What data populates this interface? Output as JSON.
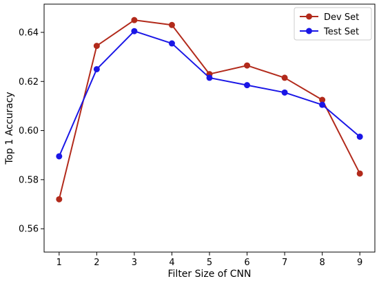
{
  "chart_data": {
    "type": "line",
    "xlabel": "Filter Size of CNN",
    "ylabel": "Top 1 Accuracy",
    "x": [
      1,
      2,
      3,
      4,
      5,
      6,
      7,
      8,
      9
    ],
    "xlim": [
      0.6,
      9.4
    ],
    "ylim": [
      0.5505,
      0.6515
    ],
    "xticks": [
      "1",
      "2",
      "3",
      "4",
      "5",
      "6",
      "7",
      "8",
      "9"
    ],
    "yticks": [
      "0.56",
      "0.58",
      "0.60",
      "0.62",
      "0.64"
    ],
    "ytick_values": [
      0.56,
      0.58,
      0.6,
      0.62,
      0.64
    ],
    "grid": false,
    "legend_position": "top-right",
    "series": [
      {
        "name": "Dev Set",
        "color": "#b22a1b",
        "values": [
          0.572,
          0.6345,
          0.645,
          0.643,
          0.623,
          0.6265,
          0.6215,
          0.6125,
          0.5825
        ]
      },
      {
        "name": "Test Set",
        "color": "#1a16e6",
        "values": [
          0.5895,
          0.625,
          0.6405,
          0.6355,
          0.6215,
          0.6185,
          0.6155,
          0.6105,
          0.5975
        ]
      }
    ]
  }
}
